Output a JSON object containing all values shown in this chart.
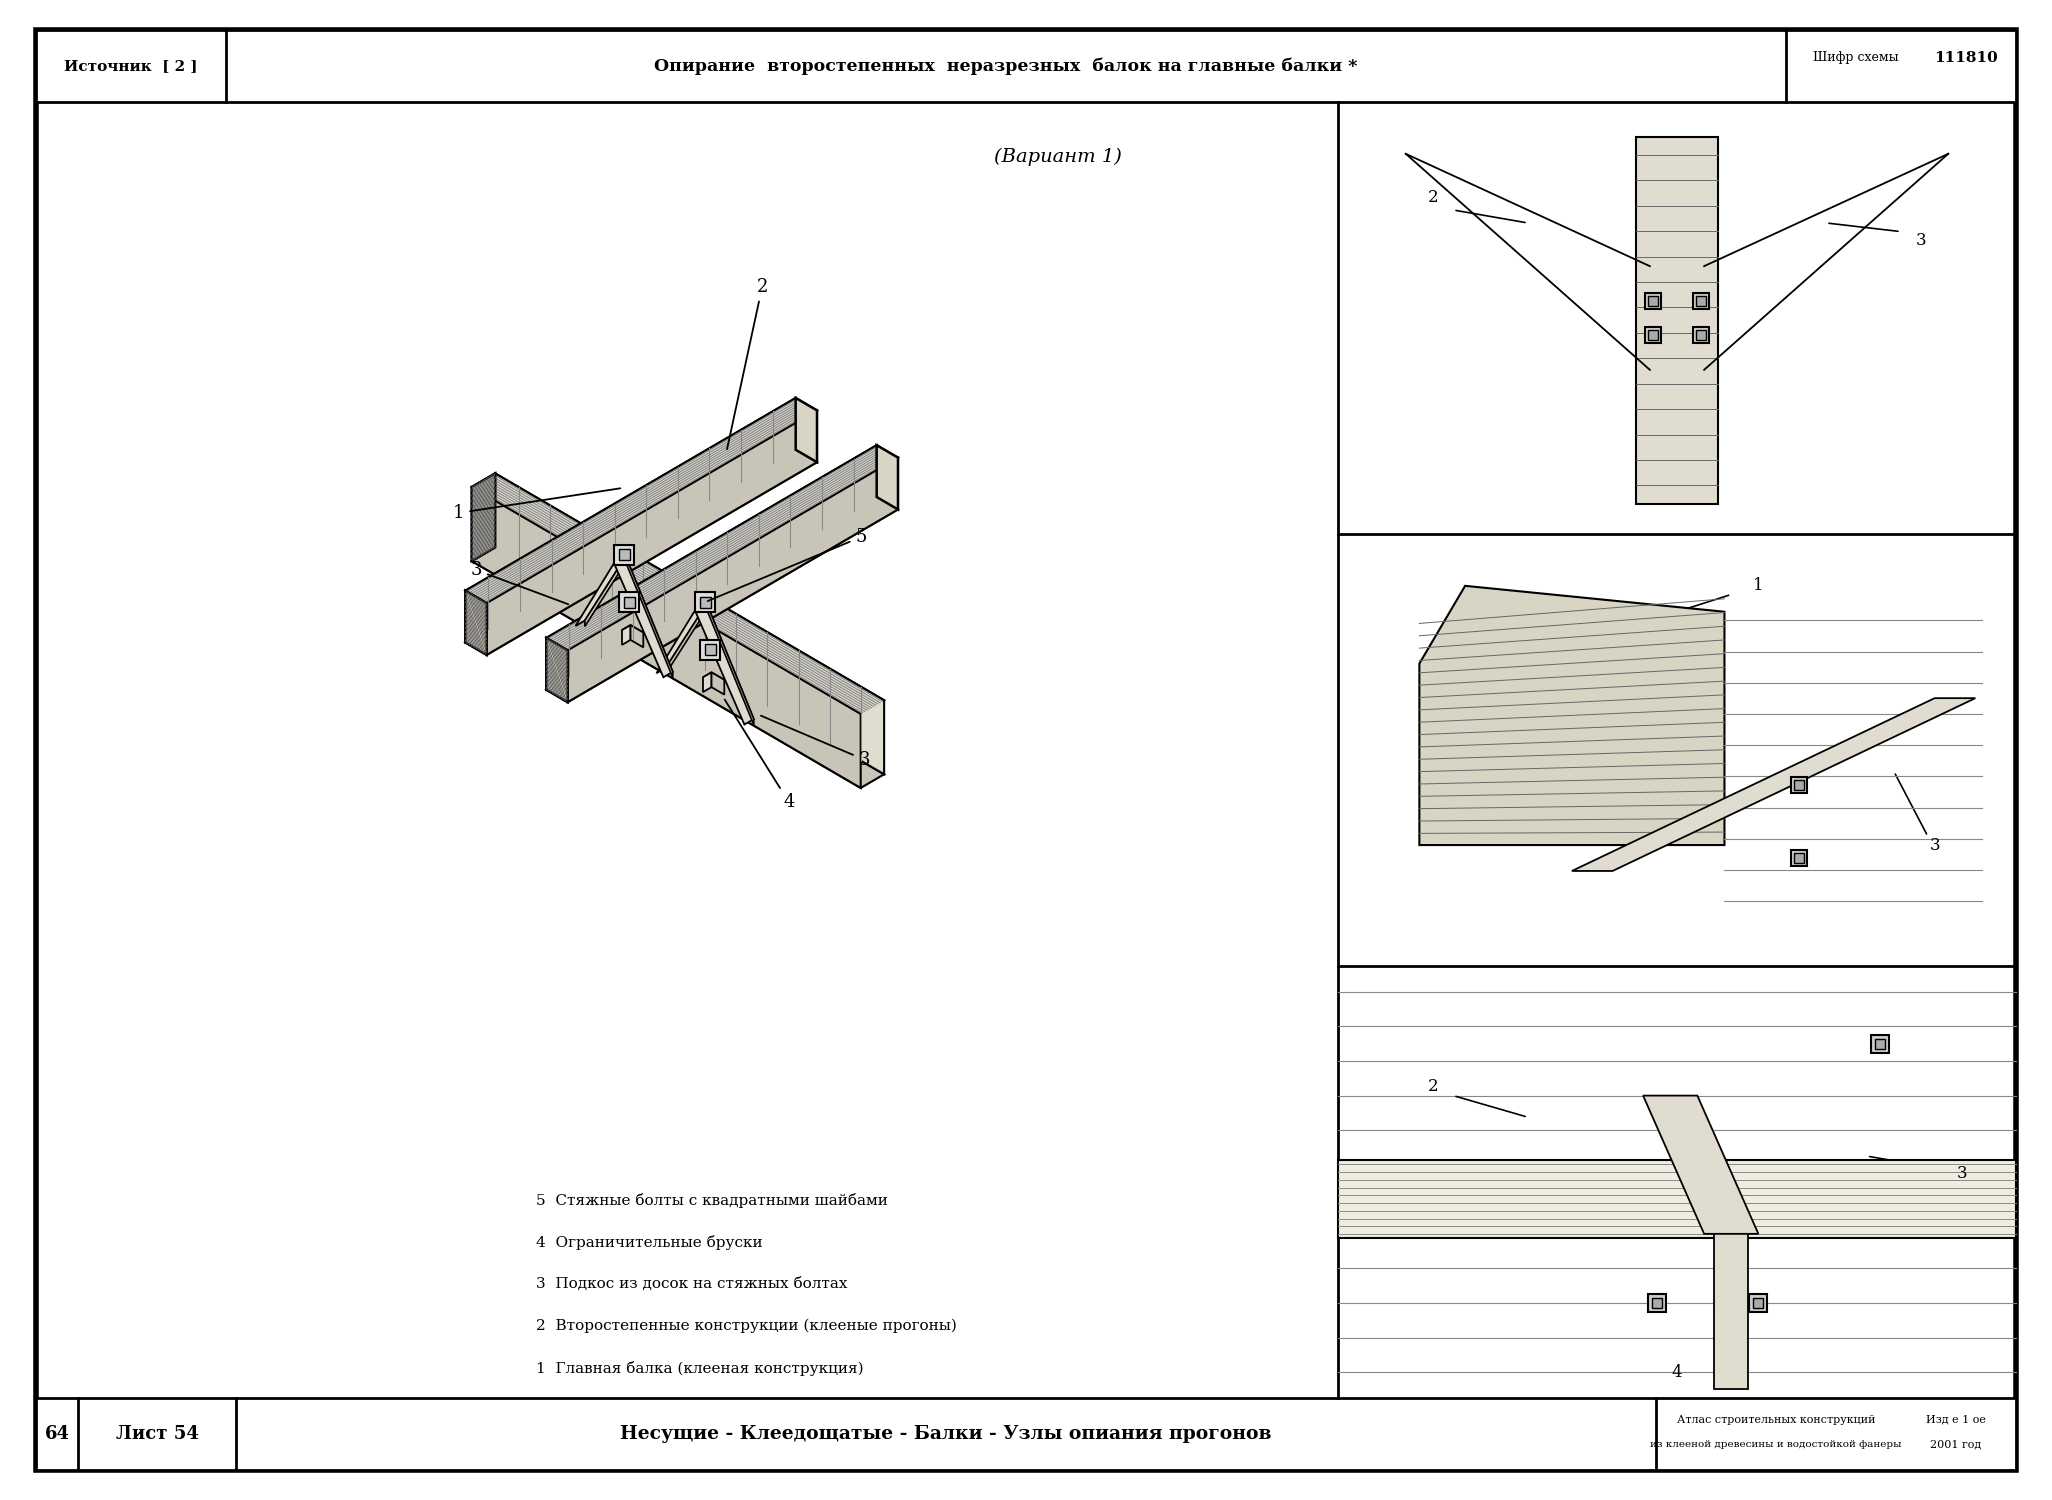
{
  "title_top": "Опирание  второстепенных  неразрезных  балок на главные балки *",
  "source_label": "Источник  [ 2 ]",
  "cipher_label": "Шифр схемы",
  "cipher_num": "111810",
  "variant_label": "(Вариант 1)",
  "bottom_sheet": "Лист 54",
  "bottom_center": "Несущие - Клеедощатые - Балки - Узлы опиания прогонов",
  "bottom_right1": "Атлас строительных конструкций",
  "bottom_right2": "из клееной древесины и водостойкой фанеры",
  "bottom_right3": "Изд е 1 ое",
  "bottom_right4": "2001 год",
  "legend_items": [
    "1  Главная балка (клееная конструкция)",
    "2  Второстепенные конструкции (клееные прогоны)",
    "3  Подкос из досок на стяжных болтах",
    "4  Ограничительные бруски",
    "5  Стяжные болты с квадратными шайбами"
  ],
  "bg_color": "#ffffff",
  "line_color": "#000000",
  "wood_light": "#f0ede0",
  "wood_mid": "#e0ddd0",
  "wood_dark": "#c8c5b8",
  "wood_end": "#d8d5c5"
}
